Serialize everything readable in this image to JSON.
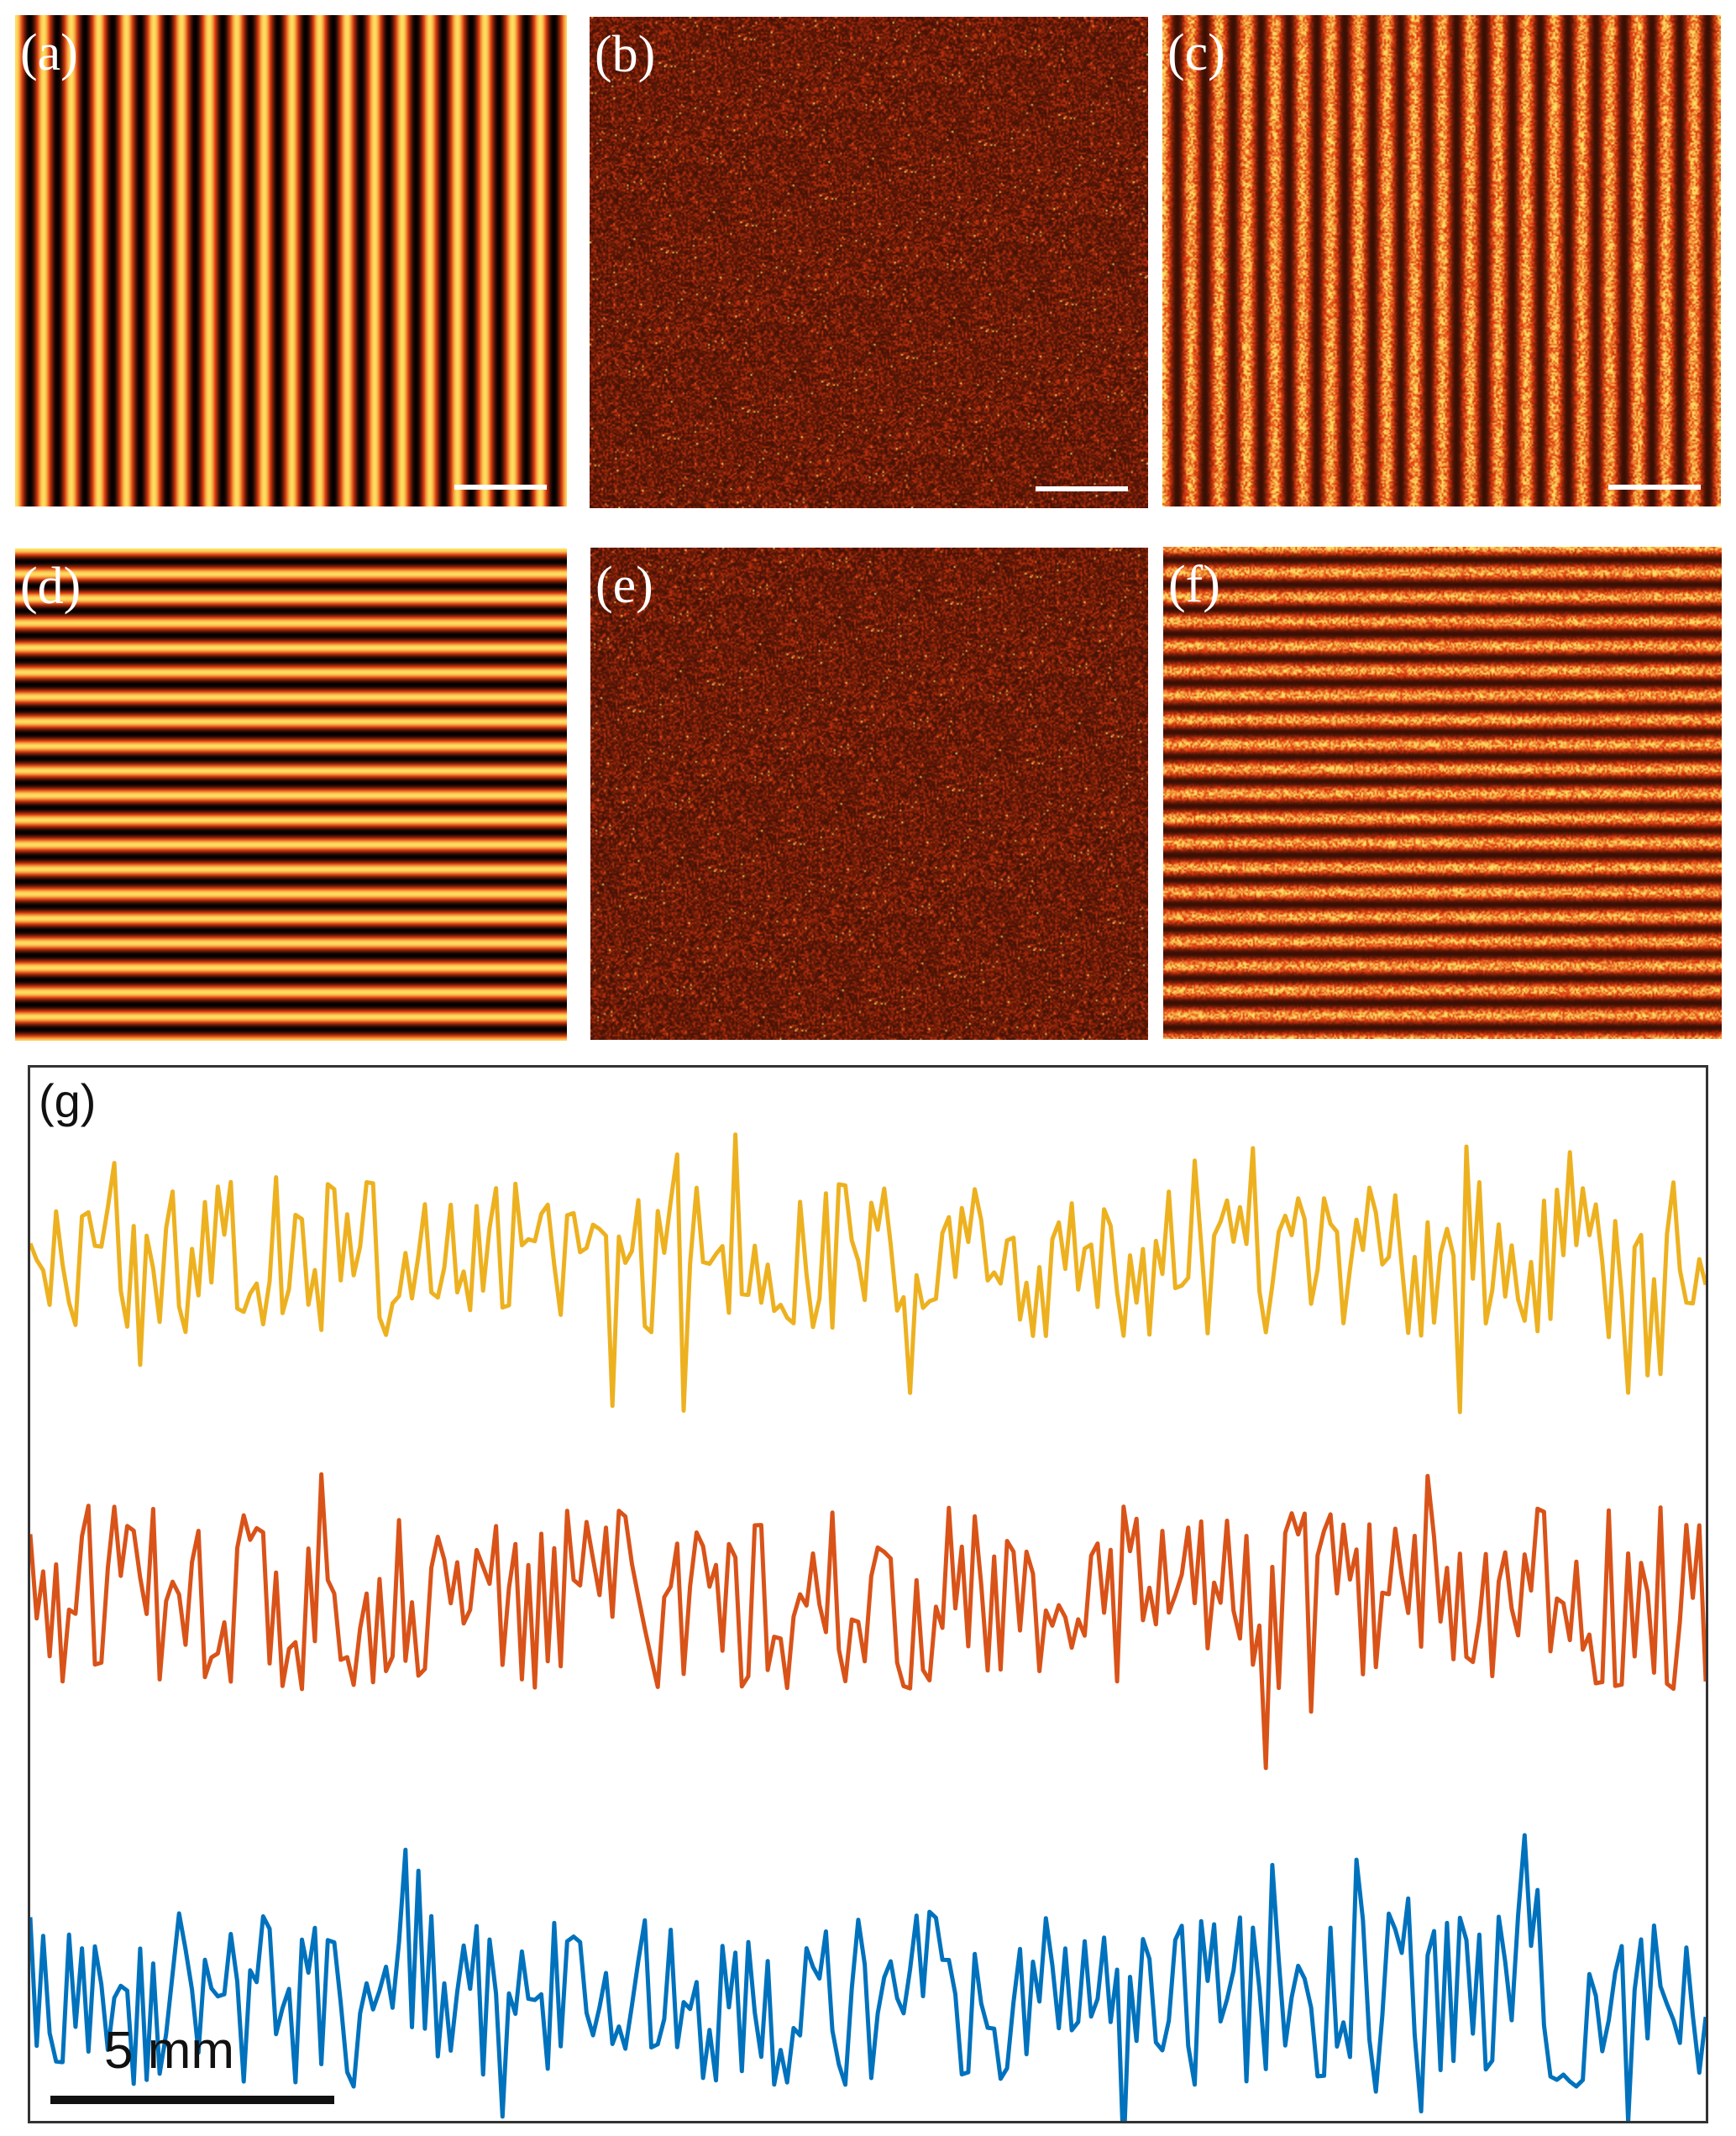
{
  "panels": [
    {
      "id": "pa",
      "label": "(a)",
      "pattern": "vertical-fringes",
      "scale_bar": true
    },
    {
      "id": "pb",
      "label": "(b)",
      "pattern": "speckle",
      "scale_bar": true
    },
    {
      "id": "pc",
      "label": "(c)",
      "pattern": "noisy-vertical-fringes",
      "scale_bar": true
    },
    {
      "id": "pd",
      "label": "(d)",
      "pattern": "horizontal-fringes",
      "scale_bar": false
    },
    {
      "id": "pe",
      "label": "(e)",
      "pattern": "speckle",
      "scale_bar": false
    },
    {
      "id": "pf",
      "label": "(f)",
      "pattern": "noisy-horizontal-fringes",
      "scale_bar": false
    }
  ],
  "colormap": {
    "low": "#000000",
    "mid": "#e03a10",
    "high": "#ffe060"
  },
  "fringe_count": 20,
  "graph": {
    "label": "(g)",
    "scale_label": "5 mm"
  },
  "chart_data": {
    "type": "line",
    "title": "",
    "xlabel": "",
    "ylabel": "",
    "grid": false,
    "series": [
      {
        "color": "#EDB120",
        "samples": 260
      },
      {
        "color": "#D95319",
        "samples": 260
      },
      {
        "color": "#0072BD",
        "samples": 260
      }
    ]
  }
}
